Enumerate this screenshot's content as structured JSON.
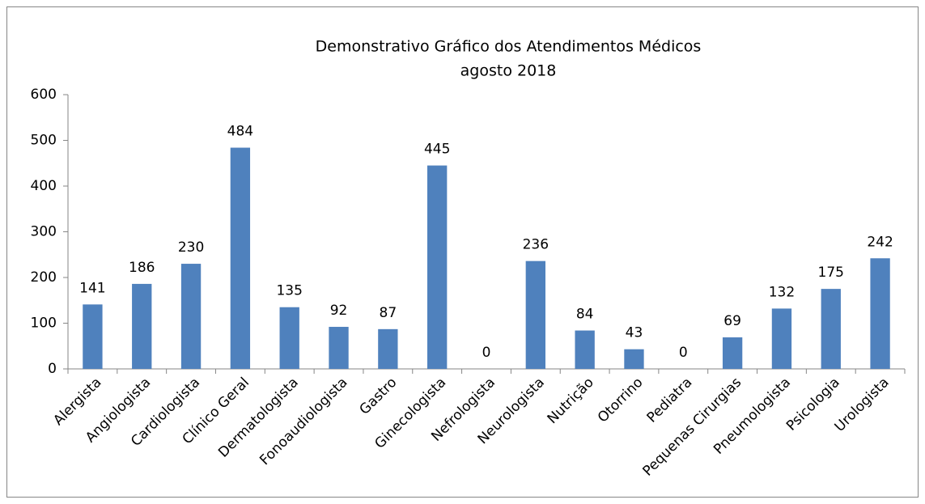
{
  "chart_data": {
    "type": "bar",
    "title": "Demonstrativo Gráfico dos Atendimentos Médicos",
    "subtitle": "agosto 2018",
    "categories": [
      "Alergista",
      "Angiologista",
      "Cardiologista",
      "Clínico Geral",
      "Dermatologista",
      "Fonoaudiologista",
      "Gastro",
      "Ginecologista",
      "Nefrologista",
      "Neurologista",
      "Nutrição",
      "Otorrino",
      "Pediatra",
      "Pequenas Cirurgias",
      "Pneumologista",
      "Psicologia",
      "Urologista"
    ],
    "values": [
      141,
      186,
      230,
      484,
      135,
      92,
      87,
      445,
      0,
      236,
      84,
      43,
      0,
      69,
      132,
      175,
      242
    ],
    "color": "#4f81bd",
    "ylim": [
      0,
      600
    ],
    "yticks": [
      0,
      100,
      200,
      300,
      400,
      500,
      600
    ],
    "grid": false
  }
}
